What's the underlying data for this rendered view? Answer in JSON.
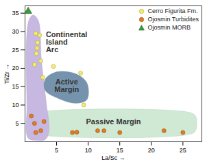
{
  "chart_data": {
    "type": "scatter",
    "xlabel": "La/Sc",
    "ylabel": "Ti/Zr",
    "xlim": [
      0,
      28
    ],
    "ylim": [
      0,
      37
    ],
    "xticks": [
      5,
      10,
      15,
      20,
      25
    ],
    "yticks": [
      5,
      10,
      15,
      20,
      25,
      30,
      35
    ],
    "legend": "upper right",
    "regions": [
      {
        "name": "Passive Margin",
        "color": "#cfe9d5",
        "label_x": 14,
        "label_y": 5.5,
        "x": [
          2,
          26,
          27,
          27,
          26,
          2,
          1,
          1
        ],
        "y": [
          8,
          8,
          7,
          3,
          2,
          2,
          3,
          7
        ]
      },
      {
        "name": "Continental\nIsland\nArc",
        "color": "#c7b8e2",
        "label_x": 3.3,
        "label_y": 30,
        "x": [
          0.6,
          1.3,
          2.1,
          2.6,
          3.4,
          3.8,
          3.2,
          1.8,
          0.5,
          0.3
        ],
        "y": [
          33,
          34.5,
          33,
          22,
          10,
          3,
          0.6,
          0.4,
          1,
          10
        ]
      },
      {
        "name": "Active\nMargin",
        "color": "#7593ac",
        "label_x": 6.6,
        "label_y": 15.3,
        "x": [
          3.2,
          5,
          8,
          9.8,
          9.8,
          8,
          5,
          3.2
        ],
        "y": [
          17,
          19,
          18.5,
          16,
          11.5,
          10.5,
          12,
          14
        ]
      }
    ],
    "series": [
      {
        "name": "Cerro Figurita Fm.",
        "color": "#f5ec6a",
        "marker": "circle",
        "x": [
          1.7,
          2.3,
          2.0,
          1.9,
          1.8,
          2.5,
          1.5,
          4.5,
          2.8,
          8.8,
          9.3
        ],
        "y": [
          29.5,
          29,
          27,
          25.5,
          24,
          22,
          21,
          20.5,
          17.5,
          18.7,
          10
        ]
      },
      {
        "name": "Ojosmin Turbidites",
        "color": "#e07b20",
        "marker": "circle",
        "x": [
          1.0,
          1.5,
          2.5,
          3.0,
          1.7,
          7.5,
          8.2,
          11.5,
          12.5,
          15,
          22,
          25
        ],
        "y": [
          7,
          5,
          3,
          5.5,
          2.5,
          2.5,
          2.6,
          3,
          3,
          2.5,
          3,
          2.5
        ]
      },
      {
        "name": "Ojosmin MORB",
        "color": "#3a9a3a",
        "marker": "triangle",
        "x": [
          0.5
        ],
        "y": [
          35.5
        ]
      }
    ]
  }
}
